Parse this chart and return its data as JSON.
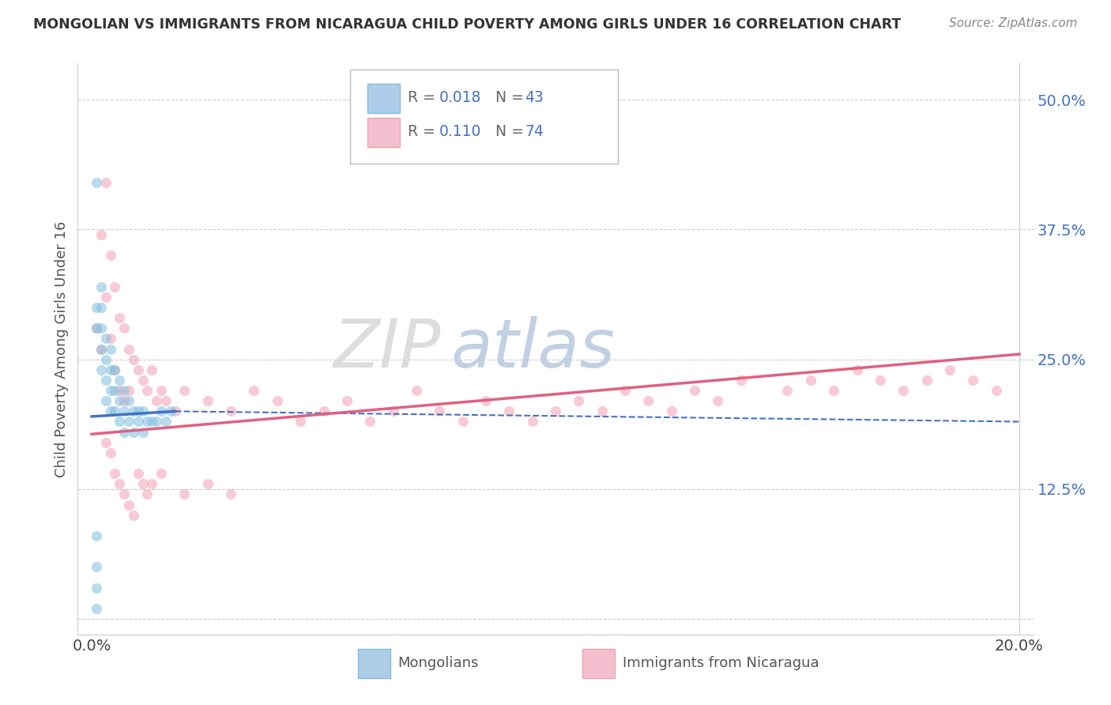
{
  "title": "MONGOLIAN VS IMMIGRANTS FROM NICARAGUA CHILD POVERTY AMONG GIRLS UNDER 16 CORRELATION CHART",
  "source": "Source: ZipAtlas.com",
  "ylabel": "Child Poverty Among Girls Under 16",
  "xlim": [
    0.0,
    0.2
  ],
  "ylim": [
    0.0,
    0.52
  ],
  "yticks": [
    0.0,
    0.125,
    0.25,
    0.375,
    0.5
  ],
  "ytick_labels": [
    "",
    "12.5%",
    "25.0%",
    "37.5%",
    "50.0%"
  ],
  "color_mongolian": "#7fbfdf",
  "color_nicaragua": "#f4a0b5",
  "color_line_mongolian": "#4472c4",
  "color_line_nicaragua": "#e06080",
  "watermark_zip": "ZIP",
  "watermark_atlas": "atlas",
  "legend_r1": "R = 0.018",
  "legend_n1": "N = 43",
  "legend_r2": "R = 0.110",
  "legend_n2": "N = 74",
  "mongolian_x": [
    0.001,
    0.001,
    0.001,
    0.002,
    0.002,
    0.002,
    0.002,
    0.002,
    0.003,
    0.003,
    0.003,
    0.003,
    0.004,
    0.004,
    0.004,
    0.004,
    0.005,
    0.005,
    0.005,
    0.006,
    0.006,
    0.006,
    0.007,
    0.007,
    0.007,
    0.008,
    0.008,
    0.009,
    0.009,
    0.01,
    0.01,
    0.011,
    0.011,
    0.012,
    0.013,
    0.014,
    0.015,
    0.016,
    0.017,
    0.001,
    0.001,
    0.001,
    0.001
  ],
  "mongolian_y": [
    0.42,
    0.3,
    0.28,
    0.32,
    0.3,
    0.28,
    0.26,
    0.24,
    0.27,
    0.25,
    0.23,
    0.21,
    0.26,
    0.24,
    0.22,
    0.2,
    0.24,
    0.22,
    0.2,
    0.23,
    0.21,
    0.19,
    0.22,
    0.2,
    0.18,
    0.21,
    0.19,
    0.2,
    0.18,
    0.2,
    0.19,
    0.2,
    0.18,
    0.19,
    0.19,
    0.19,
    0.2,
    0.19,
    0.2,
    0.08,
    0.05,
    0.03,
    0.01
  ],
  "nicaragua_x": [
    0.001,
    0.002,
    0.002,
    0.003,
    0.003,
    0.004,
    0.004,
    0.005,
    0.005,
    0.006,
    0.006,
    0.007,
    0.007,
    0.008,
    0.008,
    0.009,
    0.01,
    0.011,
    0.012,
    0.013,
    0.014,
    0.015,
    0.016,
    0.018,
    0.02,
    0.025,
    0.03,
    0.035,
    0.04,
    0.045,
    0.05,
    0.055,
    0.06,
    0.065,
    0.07,
    0.075,
    0.08,
    0.085,
    0.09,
    0.095,
    0.1,
    0.105,
    0.11,
    0.115,
    0.12,
    0.125,
    0.13,
    0.135,
    0.14,
    0.15,
    0.155,
    0.16,
    0.165,
    0.17,
    0.175,
    0.18,
    0.185,
    0.19,
    0.195,
    0.003,
    0.004,
    0.005,
    0.006,
    0.007,
    0.008,
    0.009,
    0.01,
    0.011,
    0.012,
    0.013,
    0.015,
    0.02,
    0.025,
    0.03
  ],
  "nicaragua_y": [
    0.28,
    0.37,
    0.26,
    0.42,
    0.31,
    0.35,
    0.27,
    0.32,
    0.24,
    0.29,
    0.22,
    0.28,
    0.21,
    0.26,
    0.22,
    0.25,
    0.24,
    0.23,
    0.22,
    0.24,
    0.21,
    0.22,
    0.21,
    0.2,
    0.22,
    0.21,
    0.2,
    0.22,
    0.21,
    0.19,
    0.2,
    0.21,
    0.19,
    0.2,
    0.22,
    0.2,
    0.19,
    0.21,
    0.2,
    0.19,
    0.2,
    0.21,
    0.2,
    0.22,
    0.21,
    0.2,
    0.22,
    0.21,
    0.23,
    0.22,
    0.23,
    0.22,
    0.24,
    0.23,
    0.22,
    0.23,
    0.24,
    0.23,
    0.22,
    0.17,
    0.16,
    0.14,
    0.13,
    0.12,
    0.11,
    0.1,
    0.14,
    0.13,
    0.12,
    0.13,
    0.14,
    0.12,
    0.13,
    0.12
  ]
}
